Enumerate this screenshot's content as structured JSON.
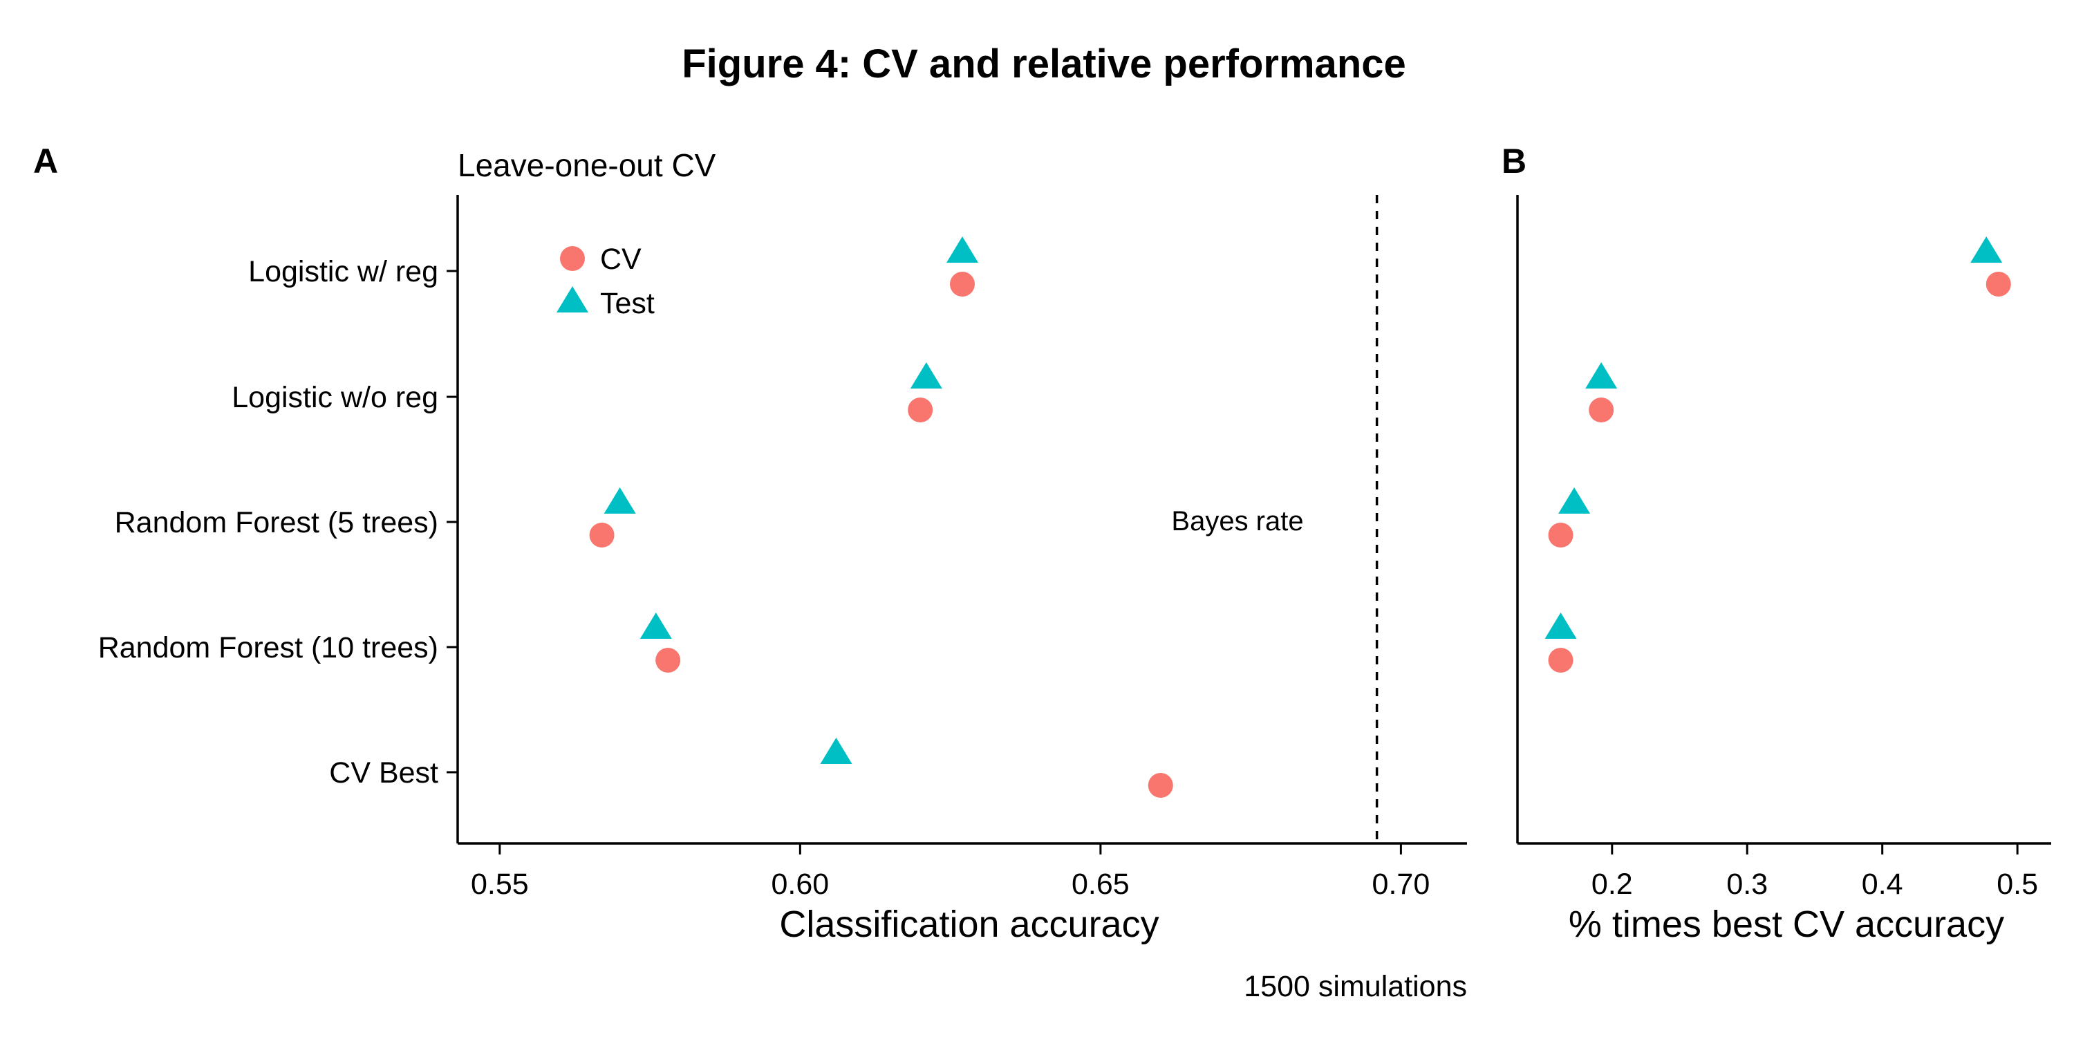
{
  "title": "Figure 4: CV and relative performance",
  "caption": "1500 simulations",
  "colors": {
    "CV": "#F8766D",
    "Test": "#00BFC4"
  },
  "categories": [
    "Logistic w/ reg",
    "Logistic w/o reg",
    "Random Forest (5 trees)",
    "Random Forest (10 trees)",
    "CV Best"
  ],
  "chart_data": [
    {
      "type": "scatter",
      "panel": "A",
      "subtitle": "Leave-one-out CV",
      "xlabel": "Classification accuracy",
      "xlim": [
        0.543,
        0.711
      ],
      "xticks": [
        "0.55",
        "0.60",
        "0.65",
        "0.70"
      ],
      "categories": [
        "Logistic w/ reg",
        "Logistic w/o reg",
        "Random Forest (5 trees)",
        "Random Forest (10 trees)",
        "CV Best"
      ],
      "series": [
        {
          "name": "CV",
          "shape": "circle",
          "values": [
            0.627,
            0.62,
            0.567,
            0.578,
            0.66
          ]
        },
        {
          "name": "Test",
          "shape": "triangle",
          "values": [
            0.627,
            0.621,
            0.57,
            0.576,
            0.606
          ]
        }
      ],
      "reference_line": {
        "x": 0.696,
        "label": "Bayes rate",
        "style": "dashed"
      },
      "legend": {
        "position": "top-left"
      },
      "grid": false
    },
    {
      "type": "scatter",
      "panel": "B",
      "xlabel": "% times best CV accuracy",
      "xlim": [
        0.13,
        0.525
      ],
      "xticks": [
        "0.2",
        "0.3",
        "0.4",
        "0.5"
      ],
      "categories": [
        "Logistic w/ reg",
        "Logistic w/o reg",
        "Random Forest (5 trees)",
        "Random Forest (10 trees)"
      ],
      "series": [
        {
          "name": "CV",
          "shape": "circle",
          "values": [
            0.486,
            0.192,
            0.162,
            0.162
          ]
        },
        {
          "name": "Test",
          "shape": "triangle",
          "values": [
            0.477,
            0.192,
            0.172,
            0.162
          ]
        }
      ],
      "grid": false
    }
  ]
}
